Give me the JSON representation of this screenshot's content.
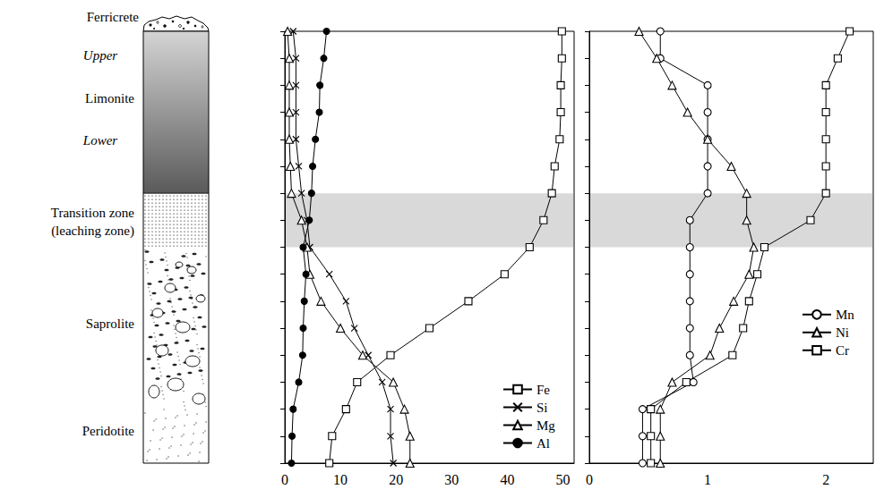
{
  "chart_data": [
    {
      "type": "line",
      "orientation": "horizontal",
      "grid": false,
      "tick_labels": "x",
      "legend": "lower right",
      "categories": [
        null,
        null,
        null,
        null,
        null,
        null,
        null,
        null,
        null,
        null,
        null,
        null,
        null,
        null,
        null,
        null,
        null
      ],
      "xlim": [
        0,
        52
      ],
      "xticks": [
        0,
        10,
        20,
        30,
        40,
        50
      ],
      "series": [
        {
          "name": "Fe",
          "color": "#000000",
          "marker": "square",
          "values": [
            49.8,
            49.8,
            49.6,
            49.6,
            49.4,
            48.5,
            48,
            46.5,
            44,
            39.5,
            33,
            26,
            19,
            13,
            11,
            8.5,
            8
          ]
        },
        {
          "name": "Si",
          "color": "#000000",
          "marker": "x",
          "values": [
            1.5,
            2,
            2,
            2,
            2,
            2.5,
            3,
            4,
            4.5,
            8,
            11,
            12.5,
            15,
            17.5,
            19,
            19,
            19.5
          ]
        },
        {
          "name": "Mg",
          "color": "#000000",
          "marker": "triangle",
          "values": [
            0.5,
            0.8,
            0.8,
            0.8,
            0.8,
            1,
            1.2,
            3,
            4,
            4.5,
            6.5,
            10,
            14,
            19.5,
            21.5,
            22.5,
            22.5
          ]
        },
        {
          "name": "Al",
          "color": "#000000",
          "marker": "dot",
          "values": [
            7.5,
            7,
            6.3,
            6.2,
            5.5,
            5,
            4.8,
            4.4,
            3.3,
            3.8,
            3.5,
            3.3,
            3.2,
            2.5,
            1.5,
            1.3,
            1.2
          ]
        }
      ]
    },
    {
      "type": "line",
      "orientation": "horizontal",
      "grid": false,
      "tick_labels": "x",
      "legend": "right",
      "categories": [
        null,
        null,
        null,
        null,
        null,
        null,
        null,
        null,
        null,
        null,
        null,
        null,
        null,
        null,
        null,
        null,
        null
      ],
      "xlim": [
        0,
        2.4
      ],
      "xticks": [
        0,
        1,
        2
      ],
      "series": [
        {
          "name": "Mn",
          "color": "#000000",
          "marker": "circle",
          "values": [
            0.6,
            0.6,
            1,
            1,
            1,
            1,
            1,
            0.85,
            0.85,
            0.85,
            0.85,
            0.85,
            0.85,
            0.88,
            0.45,
            0.45,
            0.45
          ]
        },
        {
          "name": "Ni",
          "color": "#000000",
          "marker": "triangle",
          "values": [
            0.42,
            0.57,
            0.7,
            0.83,
            1,
            1.2,
            1.33,
            1.33,
            1.39,
            1.35,
            1.22,
            1.1,
            1.02,
            0.7,
            0.6,
            0.6,
            0.6
          ]
        },
        {
          "name": "Cr",
          "color": "#000000",
          "marker": "square",
          "values": [
            2.2,
            2.1,
            2,
            2,
            2,
            2,
            2,
            1.87,
            1.48,
            1.42,
            1.35,
            1.3,
            1.21,
            0.82,
            0.52,
            0.52,
            0.52
          ]
        }
      ]
    }
  ],
  "profile": {
    "labels": [
      "Ferricrete",
      "Upper",
      "Limonite",
      "Lower",
      "Transition zone",
      "(leaching zone)",
      "Saprolite",
      "Peridotite"
    ]
  }
}
